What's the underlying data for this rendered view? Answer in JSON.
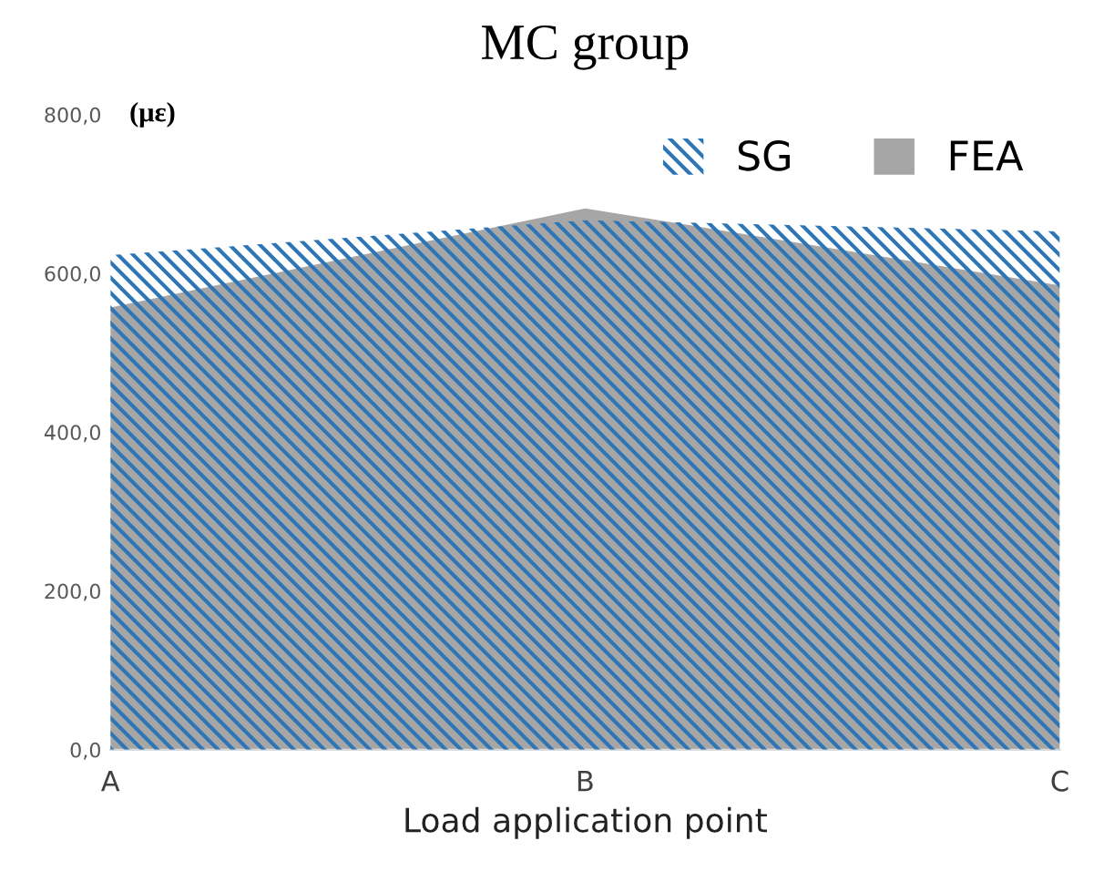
{
  "chart_data": {
    "type": "area",
    "title": "MC group",
    "xlabel": "Load application point",
    "ylabel": "(με)",
    "categories": [
      "A",
      "B",
      "C"
    ],
    "series": [
      {
        "name": "SG",
        "color": "#2e75b6",
        "values": [
          623,
          667,
          653
        ]
      },
      {
        "name": "FEA",
        "color": "#a6a6a6",
        "values": [
          557,
          682,
          585
        ]
      }
    ],
    "ylim": [
      0,
      800
    ],
    "yticks": [
      {
        "value": 0,
        "label": "0,0"
      },
      {
        "value": 200,
        "label": "200,0"
      },
      {
        "value": 400,
        "label": "400,0"
      },
      {
        "value": 600,
        "label": "600,0"
      },
      {
        "value": 800,
        "label": "800,0"
      }
    ],
    "grid": false,
    "legend": "top right"
  }
}
